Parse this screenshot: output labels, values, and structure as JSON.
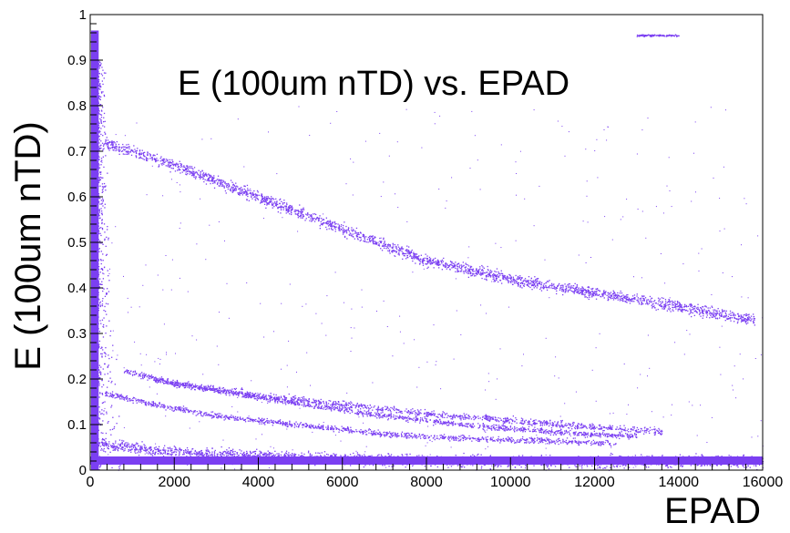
{
  "chart_data": {
    "type": "scatter",
    "title": "E (100um nTD) vs. EPAD",
    "xlabel": "EPAD",
    "ylabel": "E (100um nTD)",
    "xlim": [
      0,
      16000
    ],
    "ylim": [
      0,
      1
    ],
    "x_ticks": [
      0,
      2000,
      4000,
      6000,
      8000,
      10000,
      12000,
      14000,
      16000
    ],
    "y_ticks": [
      0,
      0.1,
      0.2,
      0.3,
      0.4,
      0.5,
      0.6,
      0.7,
      0.8,
      0.9,
      1
    ],
    "x_tick_labels": [
      "0",
      "2000",
      "4000",
      "6000",
      "8000",
      "10000",
      "12000",
      "14000",
      "16000"
    ],
    "y_tick_labels": [
      "0",
      "0.1",
      "0.2",
      "0.3",
      "0.4",
      "0.5",
      "0.6",
      "0.7",
      "0.8",
      "0.9",
      "1"
    ],
    "marker_color": "#7b3ff2",
    "grid": false,
    "bands": [
      {
        "x": [
          300,
          2000,
          4000,
          6000,
          8000,
          10000,
          12000,
          14000,
          15800
        ],
        "y": [
          0.72,
          0.67,
          0.6,
          0.53,
          0.46,
          0.42,
          0.39,
          0.36,
          0.33
        ],
        "spread": 0.012
      },
      {
        "x": [
          300,
          1500,
          3000,
          5000,
          7000,
          9000,
          11000,
          12500
        ],
        "y": [
          0.17,
          0.145,
          0.12,
          0.1,
          0.08,
          0.07,
          0.065,
          0.06
        ],
        "spread": 0.006
      },
      {
        "x": [
          800,
          2000,
          4000,
          6000,
          8000,
          10000,
          12000,
          13600
        ],
        "y": [
          0.22,
          0.19,
          0.165,
          0.145,
          0.125,
          0.11,
          0.095,
          0.085
        ],
        "spread": 0.007
      },
      {
        "x": [
          1500,
          4000,
          7000,
          9000,
          11000,
          13000
        ],
        "y": [
          0.2,
          0.16,
          0.12,
          0.1,
          0.085,
          0.075
        ],
        "spread": 0.006
      },
      {
        "x": [
          200,
          1500,
          3000,
          6000,
          10000,
          16000
        ],
        "y": [
          0.06,
          0.045,
          0.035,
          0.025,
          0.02,
          0.02
        ],
        "spread": 0.012
      },
      {
        "x": [
          12000,
          16000
        ],
        "y": [
          0.025,
          0.025
        ],
        "spread": 0.006
      }
    ],
    "vertical_band": {
      "x": [
        0,
        180
      ],
      "y": [
        0,
        0.965
      ]
    },
    "top_band": {
      "x": [
        13000,
        14000
      ],
      "y": 0.955
    }
  }
}
